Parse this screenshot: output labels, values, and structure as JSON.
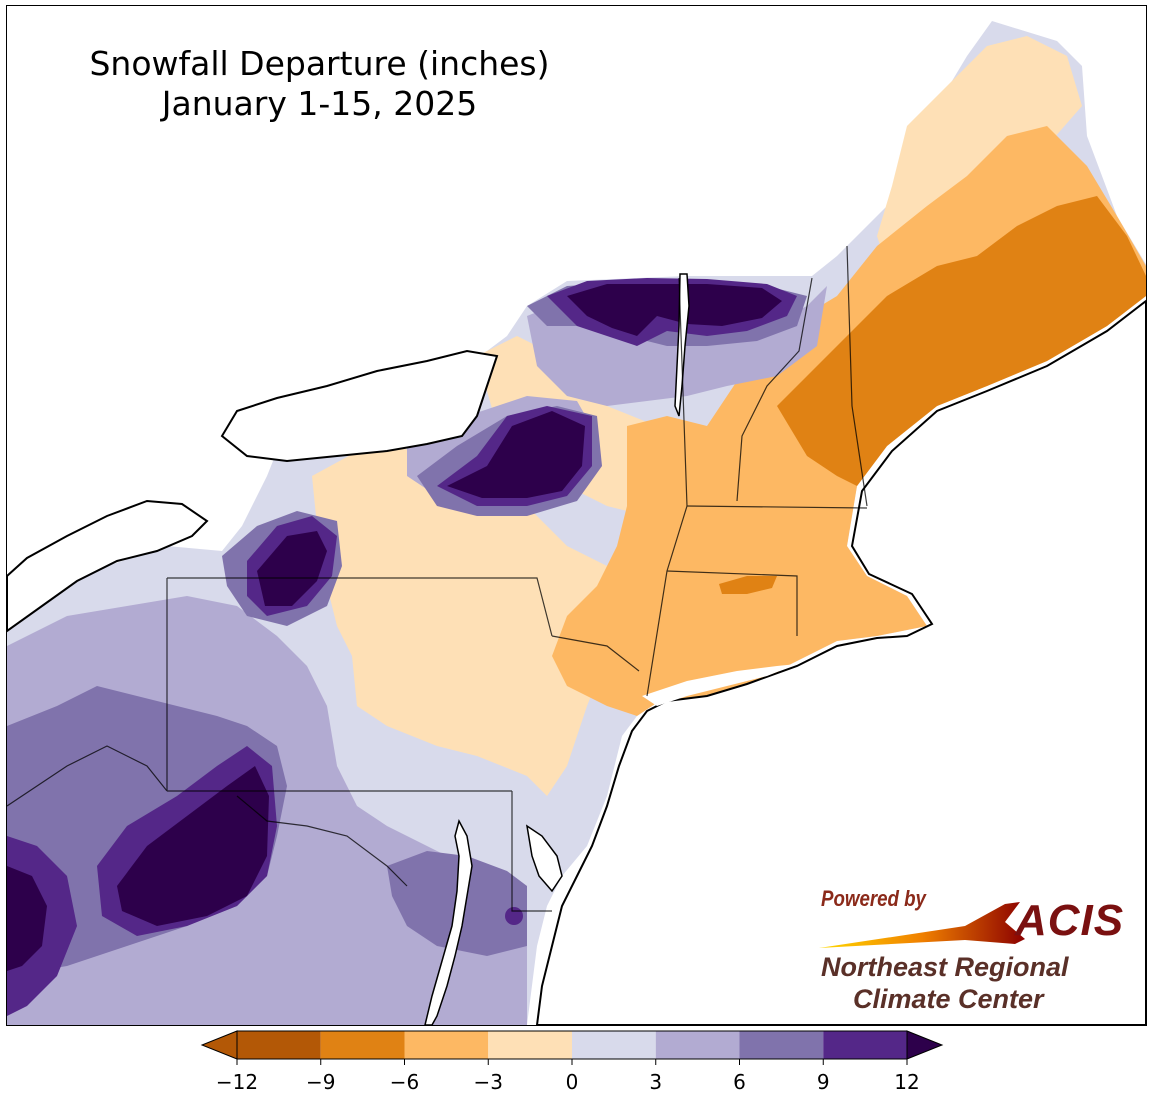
{
  "title": {
    "line1": "Snowfall Departure (inches)",
    "line2": "January 1-15, 2025"
  },
  "credit": {
    "powered_by": "Powered by",
    "acis": "ACIS",
    "line1": "Northeast Regional",
    "line2": "Climate Center"
  },
  "legend": {
    "ticks": [
      "−12",
      "−9",
      "−6",
      "−3",
      "0",
      "3",
      "6",
      "9",
      "12"
    ],
    "colors": [
      "#b35806",
      "#e08214",
      "#fdb863",
      "#fee0b6",
      "#d8daeb",
      "#b2abd2",
      "#8073ac",
      "#542788"
    ],
    "under_color": "#b35806",
    "over_color": "#2d004b",
    "extend": "both"
  },
  "palette": {
    "water": "#ffffff",
    "deep_purple": "#2d004b",
    "border": "#000000",
    "county_line": "#888888"
  }
}
